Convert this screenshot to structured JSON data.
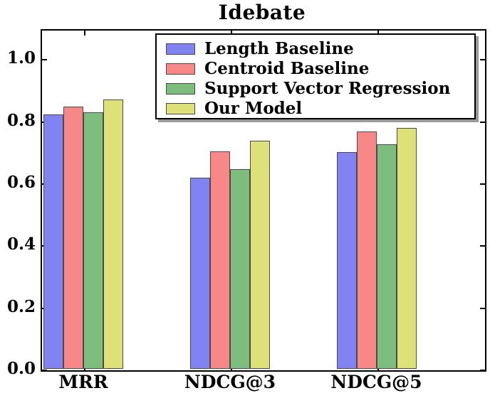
{
  "chart_data": {
    "type": "bar",
    "title": "Idebate",
    "categories": [
      "MRR",
      "NDCG@3",
      "NDCG@5"
    ],
    "series": [
      {
        "name": "Length Baseline",
        "color": "#8183f2",
        "values": [
          0.82,
          0.615,
          0.698
        ]
      },
      {
        "name": "Centroid Baseline",
        "color": "#f88788",
        "values": [
          0.845,
          0.7,
          0.765
        ]
      },
      {
        "name": "Support Vector Regression",
        "color": "#7dbe7e",
        "values": [
          0.826,
          0.644,
          0.724
        ]
      },
      {
        "name": "Our Model",
        "color": "#dee078",
        "values": [
          0.867,
          0.734,
          0.777
        ]
      }
    ],
    "ytick_labels": [
      "0.0",
      "0.2",
      "0.4",
      "0.6",
      "0.8",
      "1.0"
    ],
    "yticks": [
      0.0,
      0.2,
      0.4,
      0.6,
      0.8,
      1.0
    ],
    "ylim": [
      0,
      1.094
    ],
    "xlabel": "",
    "ylabel": "",
    "grid": false,
    "legend_position": "upper center",
    "bar_edge_color": "#4a4a4a",
    "axis_color": "#000000",
    "background_color": "#ffffff"
  }
}
